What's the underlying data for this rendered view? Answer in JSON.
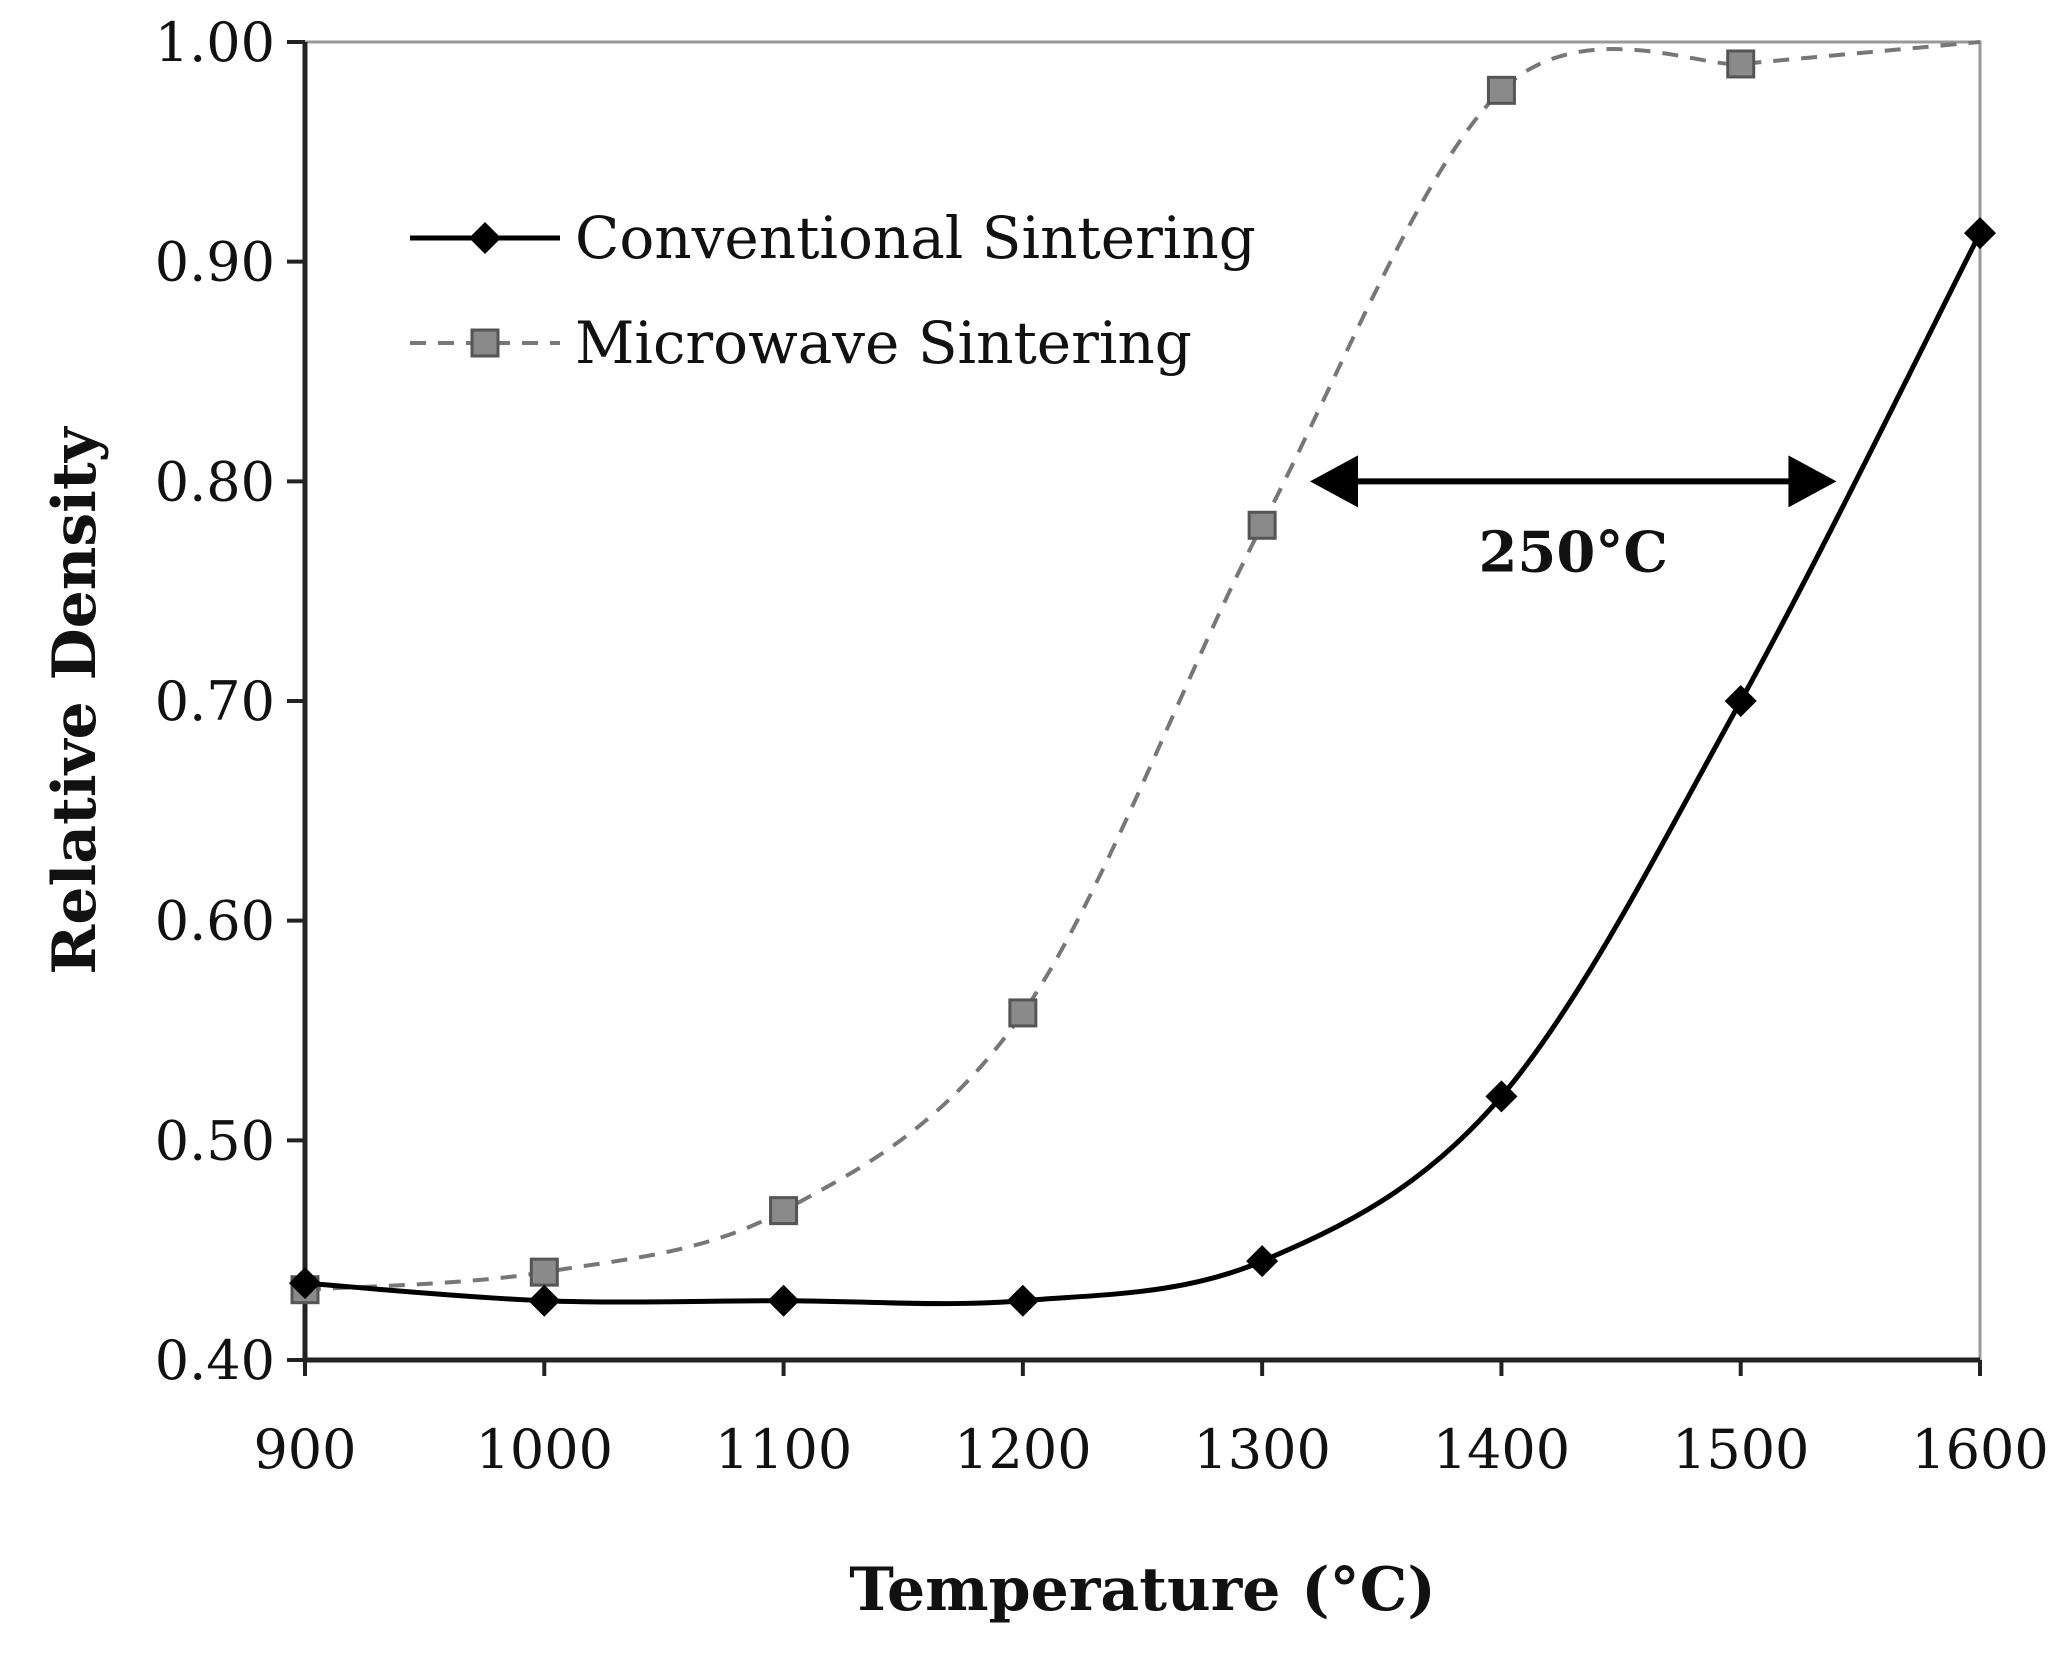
{
  "chart_data": {
    "type": "line",
    "title": "",
    "xlabel": "Temperature (°C)",
    "ylabel": "Relative Density",
    "xlim": [
      900,
      1600
    ],
    "ylim": [
      0.4,
      1.0
    ],
    "x_ticks": [
      900,
      1000,
      1100,
      1200,
      1300,
      1400,
      1500,
      1600
    ],
    "y_ticks": [
      0.4,
      0.5,
      0.6,
      0.7,
      0.8,
      0.9,
      1.0
    ],
    "x_tick_labels": [
      "900",
      "1000",
      "1100",
      "1200",
      "1300",
      "1400",
      "1500",
      "1600"
    ],
    "y_tick_labels": [
      "0.40",
      "0.50",
      "0.60",
      "0.70",
      "0.80",
      "0.90",
      "1.00"
    ],
    "grid": false,
    "legend_position": "top-left",
    "series": [
      {
        "name": "Conventional Sintering",
        "style": "solid",
        "marker": "diamond",
        "color": "#000000",
        "x": [
          900,
          1000,
          1100,
          1200,
          1300,
          1400,
          1500,
          1600
        ],
        "values": [
          0.435,
          0.427,
          0.427,
          0.427,
          0.445,
          0.52,
          0.7,
          0.913
        ]
      },
      {
        "name": "Microwave Sintering",
        "style": "dashed",
        "marker": "square",
        "color": "#777777",
        "x": [
          900,
          1000,
          1100,
          1200,
          1300,
          1400,
          1500
        ],
        "values": [
          0.432,
          0.44,
          0.468,
          0.558,
          0.78,
          0.978,
          0.99
        ]
      }
    ],
    "annotations": [
      {
        "type": "double-arrow",
        "from_x": 1320,
        "to_x": 1540,
        "y": 0.8,
        "label": "250°C"
      }
    ]
  }
}
